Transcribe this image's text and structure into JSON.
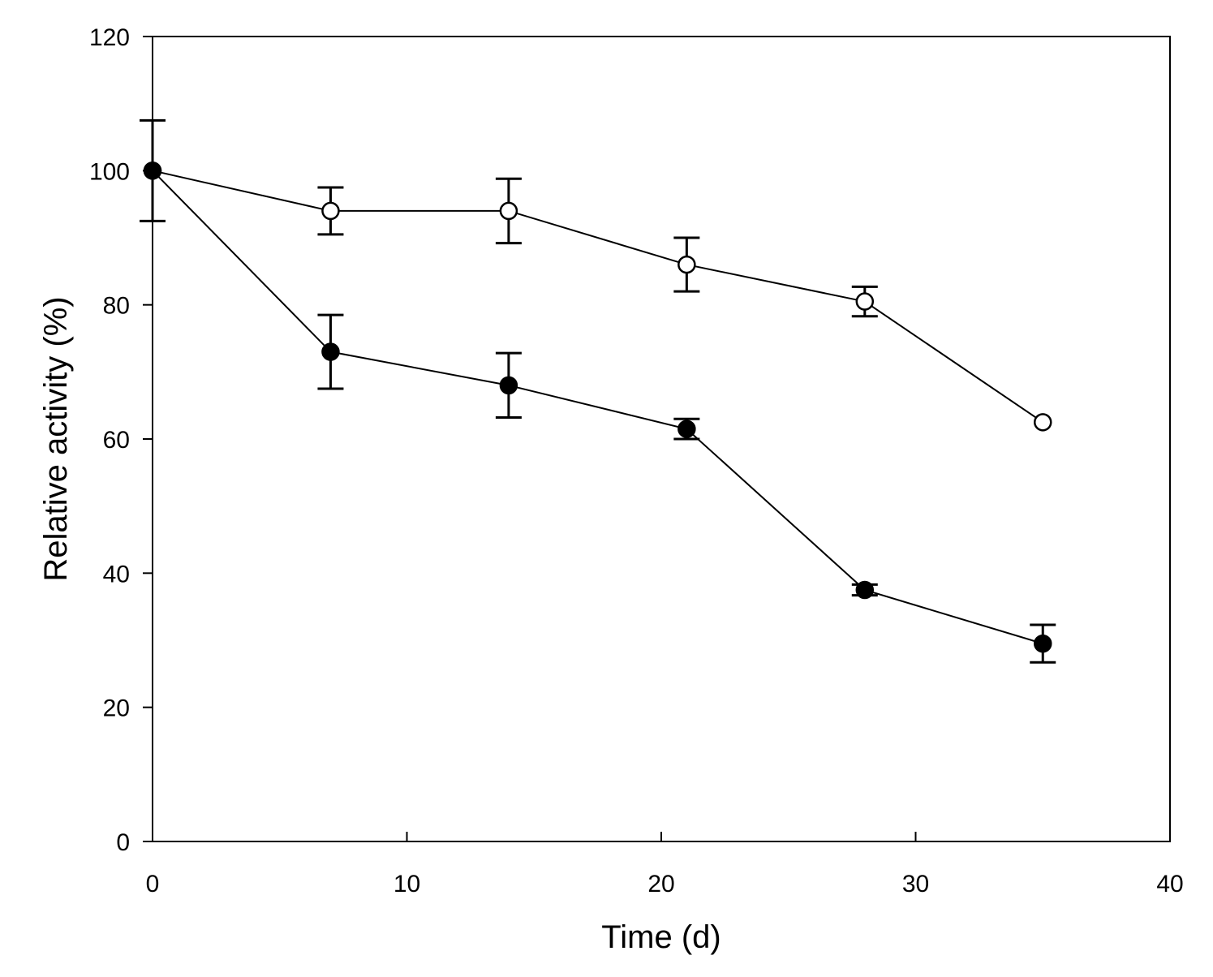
{
  "chart_data": {
    "type": "line",
    "title": "",
    "xlabel": "Time (d)",
    "ylabel": "Relative activity  (%)",
    "xlim": [
      0,
      40
    ],
    "ylim": [
      0,
      120
    ],
    "x_ticks": [
      0,
      10,
      20,
      30,
      40
    ],
    "x_tick_labels": [
      "0",
      "10",
      "20",
      "30",
      "40"
    ],
    "y_ticks": [
      0,
      20,
      40,
      60,
      80,
      100,
      120
    ],
    "y_tick_labels": [
      "0",
      "20",
      "40",
      "60",
      "80",
      "100",
      "120"
    ],
    "grid": false,
    "legend": "none",
    "series": [
      {
        "name": "open circles",
        "marker": "open-circle",
        "x": [
          0,
          7,
          14,
          21,
          28,
          35
        ],
        "y": [
          100,
          94,
          94,
          86,
          80.5,
          62.5
        ],
        "err": [
          7.5,
          3.5,
          4.8,
          4,
          2.2,
          0
        ]
      },
      {
        "name": "filled circles",
        "marker": "filled-circle",
        "x": [
          0,
          7,
          14,
          21,
          28,
          35
        ],
        "y": [
          100,
          73,
          68,
          61.5,
          37.5,
          29.5
        ],
        "err": [
          0,
          5.5,
          4.8,
          1.5,
          0.8,
          2.8
        ]
      }
    ]
  }
}
